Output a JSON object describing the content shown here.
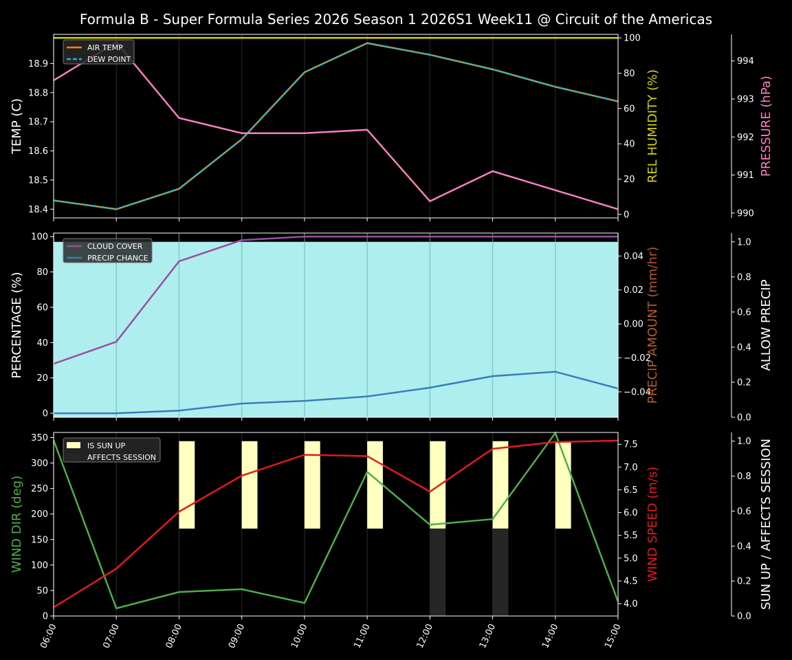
{
  "title": "Formula B - Super Formula Series 2026 Season 1 2026S1 Week11 @ Circuit of the Americas",
  "colors": {
    "background": "#000000",
    "air_temp": "#ff7f0e",
    "dew_point": "#17becf",
    "humidity": "#d4d400",
    "pressure": "#f781bf",
    "cloud": "#984ea3",
    "precip_chance": "#377eb8",
    "allow_precip_fill": "#afeeee",
    "wind_dir": "#4daf4a",
    "wind_speed": "#e41a1c",
    "sun_up": "#ffffc0",
    "affects_session": "#262626"
  },
  "chart_data": [
    {
      "type": "line",
      "x": [
        "06:00",
        "07:00",
        "08:00",
        "09:00",
        "10:00",
        "11:00",
        "12:00",
        "13:00",
        "14:00",
        "15:00"
      ],
      "ylabel": "TEMP (C)",
      "ylim": [
        18.37,
        19.0
      ],
      "yticks": [
        "18.4",
        "18.5",
        "18.6",
        "18.7",
        "18.8",
        "18.9"
      ],
      "y2label": "REL HUMIDITY (%)",
      "y2lim": [
        -2,
        102
      ],
      "y2ticks": [
        "0",
        "20",
        "40",
        "60",
        "80",
        "100"
      ],
      "y3label": "PRESSURE (hPa)",
      "y3lim": [
        989.87,
        994.7
      ],
      "y3ticks": [
        "990",
        "991",
        "992",
        "993",
        "994"
      ],
      "legend": "top-left",
      "grid": "vertical",
      "series": [
        {
          "name": "AIR TEMP",
          "axis": "left",
          "style": "solid",
          "values": [
            18.43,
            18.4,
            18.47,
            18.64,
            18.87,
            18.97,
            18.93,
            18.88,
            18.82,
            18.77
          ]
        },
        {
          "name": "DEW POINT",
          "axis": "left",
          "style": "dashed",
          "values": [
            18.43,
            18.4,
            18.47,
            18.64,
            18.87,
            18.97,
            18.93,
            18.88,
            18.82,
            18.77
          ]
        },
        {
          "axis": "right",
          "key": "humidity",
          "values": [
            100,
            100,
            100,
            100,
            100,
            100,
            100,
            100,
            100,
            100
          ]
        },
        {
          "axis": "right2",
          "key": "pressure",
          "values": [
            993.49,
            994.49,
            992.5,
            992.1,
            992.1,
            992.19,
            990.31,
            991.1,
            990.6,
            990.1
          ]
        }
      ]
    },
    {
      "type": "line",
      "x": [
        "06:00",
        "07:00",
        "08:00",
        "09:00",
        "10:00",
        "11:00",
        "12:00",
        "13:00",
        "14:00",
        "15:00"
      ],
      "ylabel": "PERCENTAGE (%)",
      "ylim": [
        -2.3,
        102
      ],
      "yticks": [
        "0",
        "20",
        "40",
        "60",
        "80",
        "100"
      ],
      "y2label": "PRECIP AMOUNT (mm/hr)",
      "y2lim": [
        -0.055,
        0.0535
      ],
      "y2ticks": [
        "−0.04",
        "−0.02",
        "0.00",
        "0.02",
        "0.04"
      ],
      "y3label": "ALLOW PRECIP",
      "y3lim": [
        0,
        1.05
      ],
      "y3ticks": [
        "0.0",
        "0.2",
        "0.4",
        "0.6",
        "0.8",
        "1.0"
      ],
      "legend": "top-left",
      "grid": "vertical",
      "series": [
        {
          "name": "CLOUD COVER",
          "axis": "left",
          "values": [
            28,
            40.5,
            86,
            98,
            100,
            100,
            100,
            100,
            100,
            100
          ]
        },
        {
          "name": "PRECIP CHANCE",
          "axis": "left",
          "values": [
            0,
            0,
            1.5,
            5.5,
            7,
            9.5,
            14.5,
            21,
            23.5,
            14
          ]
        },
        {
          "axis": "right",
          "key": "precip_amount",
          "values": [
            0,
            0,
            0,
            0,
            0,
            0,
            0,
            0,
            0,
            0
          ]
        },
        {
          "axis": "right2",
          "key": "allow_precip",
          "type": "area",
          "values": [
            1,
            1,
            1,
            1,
            1,
            1,
            1,
            1,
            1,
            1
          ]
        }
      ]
    },
    {
      "type": "line",
      "x": [
        "06:00",
        "07:00",
        "08:00",
        "09:00",
        "10:00",
        "11:00",
        "12:00",
        "13:00",
        "14:00",
        "15:00"
      ],
      "ylabel": "WIND DIR (deg)",
      "ylim": [
        0,
        360
      ],
      "yticks": [
        "0",
        "50",
        "100",
        "150",
        "200",
        "250",
        "300",
        "350"
      ],
      "y2label": "WIND SPEED (m/s)",
      "y2lim": [
        3.73,
        7.76
      ],
      "y2ticks": [
        "4.0",
        "4.5",
        "5.0",
        "5.5",
        "6.0",
        "6.5",
        "7.0",
        "7.5"
      ],
      "y3label": "SUN UP / AFFECTS SESSION",
      "y3lim": [
        0,
        1.05
      ],
      "y3ticks": [
        "0.0",
        "0.2",
        "0.4",
        "0.6",
        "0.8",
        "1.0"
      ],
      "legend": "top-left",
      "grid": "vertical",
      "series": [
        {
          "axis": "left",
          "key": "wind_dir",
          "values": [
            344.5,
            15,
            47,
            52.5,
            25.5,
            282.6,
            179,
            190,
            359,
            28
          ]
        },
        {
          "axis": "right",
          "key": "wind_speed",
          "values": [
            3.92,
            4.77,
            6.02,
            6.81,
            7.27,
            7.24,
            6.46,
            7.4,
            7.55,
            7.58
          ]
        },
        {
          "name": "IS SUN UP",
          "axis": "right2",
          "type": "bar",
          "values": [
            0,
            0,
            1,
            1,
            1,
            1,
            1,
            1,
            1,
            0
          ]
        },
        {
          "name": "AFFECTS SESSION",
          "axis": "right2",
          "type": "bar",
          "values": [
            0,
            0,
            0,
            0,
            0,
            0,
            1,
            1,
            0,
            0
          ]
        }
      ]
    }
  ]
}
